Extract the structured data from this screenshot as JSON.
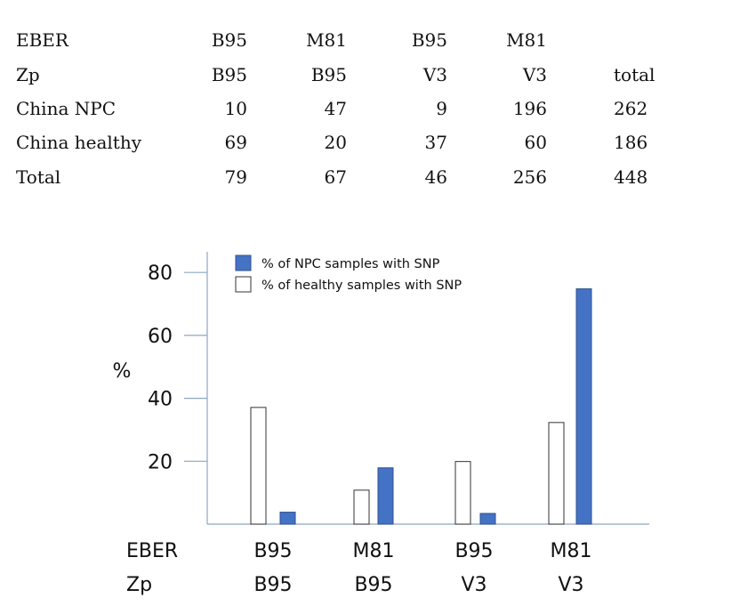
{
  "table": {
    "header_rows": [
      {
        "label": "EBER",
        "cells": [
          "B95",
          "M81",
          "B95",
          "M81",
          ""
        ]
      },
      {
        "label": "Zp",
        "cells": [
          "B95",
          "B95",
          "V3",
          "V3",
          "total"
        ]
      }
    ],
    "body_rows": [
      {
        "label": "China NPC",
        "cells": [
          "10",
          "47",
          "9",
          "196",
          "262"
        ]
      },
      {
        "label": "China healthy",
        "cells": [
          "69",
          "20",
          "37",
          "60",
          "186"
        ]
      },
      {
        "label": "Total",
        "cells": [
          "79",
          "67",
          "46",
          "256",
          "448"
        ]
      }
    ]
  },
  "chart_data": {
    "type": "bar",
    "title": "",
    "ylabel": "%",
    "ylim": [
      0,
      85
    ],
    "yticks": [
      20,
      40,
      60,
      80
    ],
    "grid": false,
    "legend_position": "top-left",
    "x_row_labels": [
      "EBER",
      "Zp"
    ],
    "categories": [
      {
        "eber": "B95",
        "zp": "B95"
      },
      {
        "eber": "M81",
        "zp": "B95"
      },
      {
        "eber": "B95",
        "zp": "V3"
      },
      {
        "eber": "M81",
        "zp": "V3"
      }
    ],
    "series": [
      {
        "name": "% of healthy samples with SNP",
        "values": [
          37.1,
          10.8,
          19.9,
          32.3
        ],
        "color": "#ffffff",
        "stroke": "#333333"
      },
      {
        "name": "% of NPC samples with SNP",
        "values": [
          3.8,
          17.9,
          3.4,
          74.8
        ],
        "color": "#4472c4",
        "stroke": "#2f528f"
      }
    ],
    "legend_order": [
      1,
      0
    ]
  }
}
